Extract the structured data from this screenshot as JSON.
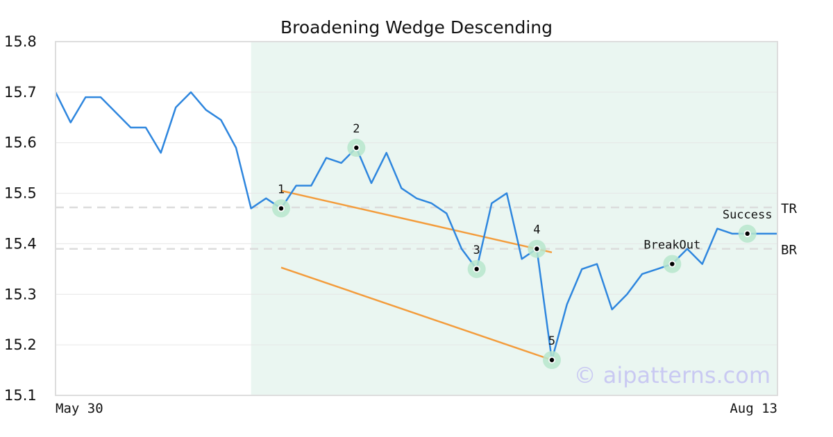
{
  "chart_data": {
    "type": "line",
    "title": "Broadening Wedge Descending",
    "ylim": [
      15.1,
      15.8
    ],
    "yticks": [
      15.1,
      15.2,
      15.3,
      15.4,
      15.5,
      15.6,
      15.7,
      15.8
    ],
    "xlim": [
      0,
      48
    ],
    "xtick_labels": [
      {
        "x": 0,
        "label": "May 30"
      },
      {
        "x": 48,
        "label": "Aug 13"
      }
    ],
    "grid": true,
    "series": [
      {
        "color": "#2e86de",
        "x": [
          0,
          1,
          2,
          3,
          4,
          5,
          6,
          7,
          8,
          9,
          10,
          11,
          12,
          13,
          14,
          15,
          16,
          17,
          18,
          19,
          20,
          21,
          22,
          23,
          24,
          25,
          26,
          27,
          28,
          29,
          30,
          31,
          32,
          33,
          34,
          35,
          36,
          37,
          38,
          39,
          40,
          41,
          42,
          43,
          44,
          45,
          46,
          47,
          48
        ],
        "values": [
          15.7,
          15.64,
          15.69,
          15.69,
          15.66,
          15.63,
          15.63,
          15.58,
          15.67,
          15.7,
          15.665,
          15.645,
          15.59,
          15.47,
          15.49,
          15.47,
          15.515,
          15.515,
          15.57,
          15.56,
          15.59,
          15.52,
          15.58,
          15.51,
          15.49,
          15.48,
          15.46,
          15.39,
          15.35,
          15.48,
          15.5,
          15.37,
          15.39,
          15.17,
          15.28,
          15.35,
          15.36,
          15.27,
          15.3,
          15.34,
          15.35,
          15.36,
          15.39,
          15.36,
          15.43,
          15.42,
          15.42,
          15.42,
          15.42
        ]
      }
    ],
    "pattern_region": {
      "x_start": 13,
      "x_end": 48,
      "color": "#eaf6f1"
    },
    "reference_lines": [
      {
        "label": "TR",
        "y": 15.472
      },
      {
        "label": "BR",
        "y": 15.39
      }
    ],
    "trendlines": [
      {
        "color": "#f39c3c",
        "points": [
          [
            15,
            15.505
          ],
          [
            33,
            15.383
          ]
        ]
      },
      {
        "color": "#f39c3c",
        "points": [
          [
            15,
            15.353
          ],
          [
            33,
            15.17
          ]
        ]
      }
    ],
    "points": [
      {
        "label": "1",
        "x": 15,
        "y": 15.47
      },
      {
        "label": "2",
        "x": 20,
        "y": 15.59
      },
      {
        "label": "3",
        "x": 28,
        "y": 15.35
      },
      {
        "label": "4",
        "x": 32,
        "y": 15.39
      },
      {
        "label": "5",
        "x": 33,
        "y": 15.17
      },
      {
        "label": "BreakOut",
        "x": 41,
        "y": 15.36
      },
      {
        "label": "Success",
        "x": 46,
        "y": 15.42
      }
    ],
    "watermark": "© aipatterns.com"
  }
}
